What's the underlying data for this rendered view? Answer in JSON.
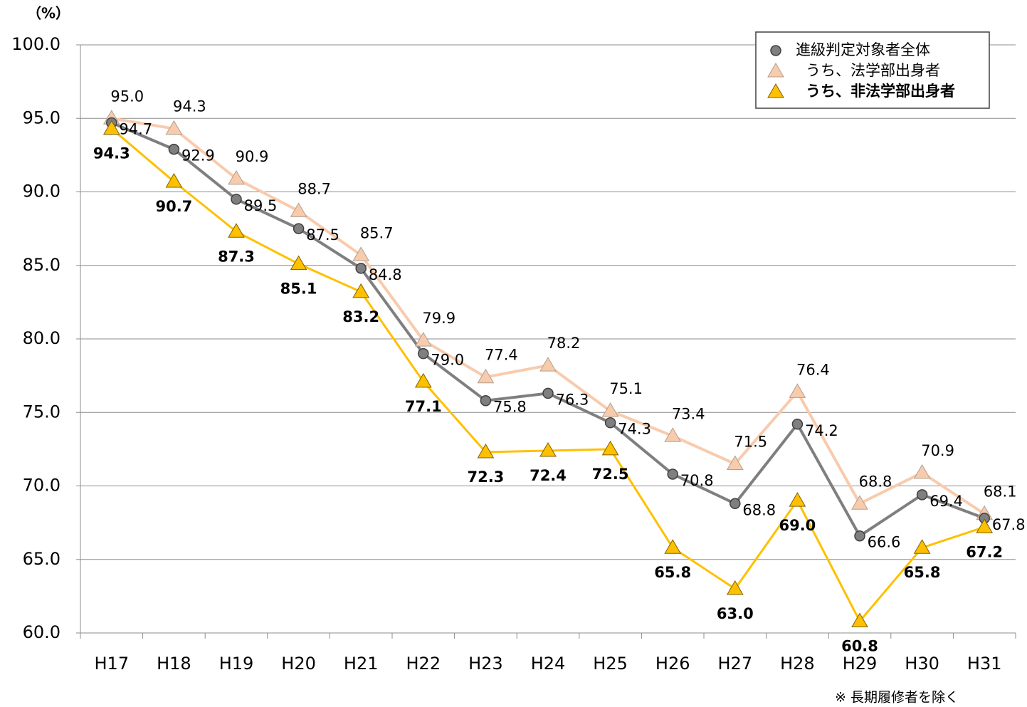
{
  "chart_data": {
    "type": "line",
    "y_axis_label": "（%）",
    "note": "※ 長期履修者を除く",
    "categories": [
      "H17",
      "H18",
      "H19",
      "H20",
      "H21",
      "H22",
      "H23",
      "H24",
      "H25",
      "H26",
      "H27",
      "H28",
      "H29",
      "H30",
      "H31"
    ],
    "series": [
      {
        "name": "進級判定対象者全体",
        "color": "#7f7f7f",
        "marker": "circle",
        "bold_labels": false,
        "values": [
          94.7,
          92.9,
          89.5,
          87.5,
          84.8,
          79.0,
          75.8,
          76.3,
          74.3,
          70.8,
          68.8,
          74.2,
          66.6,
          69.4,
          67.8
        ],
        "value_labels": [
          "94.7",
          "92.9",
          "89.5",
          "87.5",
          "84.8",
          "79.0",
          "75.8",
          "76.3",
          "74.3",
          "70.8",
          "68.8",
          "74.2",
          "66.6",
          "69.4",
          "67.8"
        ]
      },
      {
        "name": "うち、法学部出身者",
        "color": "#f8cbad",
        "marker": "triangle",
        "bold_labels": false,
        "values": [
          95.0,
          94.3,
          90.9,
          88.7,
          85.7,
          79.9,
          77.4,
          78.2,
          75.1,
          73.4,
          71.5,
          76.4,
          68.8,
          70.9,
          68.1
        ],
        "value_labels": [
          "95.0",
          "94.3",
          "90.9",
          "88.7",
          "85.7",
          "79.9",
          "77.4",
          "78.2",
          "75.1",
          "73.4",
          "71.5",
          "76.4",
          "68.8",
          "70.9",
          "68.1"
        ]
      },
      {
        "name": "うち、非法学部出身者",
        "color": "#ffc000",
        "marker": "triangle",
        "bold_labels": true,
        "values": [
          94.3,
          90.7,
          87.3,
          85.1,
          83.2,
          77.1,
          72.3,
          72.4,
          72.5,
          65.8,
          63.0,
          69.0,
          60.8,
          65.8,
          67.2
        ],
        "value_labels": [
          "94.3",
          "90.7",
          "87.3",
          "85.1",
          "83.2",
          "77.1",
          "72.3",
          "72.4",
          "72.5",
          "65.8",
          "63.0",
          "69.0",
          "60.8",
          "65.8",
          "67.2"
        ]
      }
    ],
    "ylim": [
      60,
      100
    ],
    "yticks": [
      {
        "value": 60,
        "label": "60.0"
      },
      {
        "value": 65,
        "label": "65.0"
      },
      {
        "value": 70,
        "label": "70.0"
      },
      {
        "value": 75,
        "label": "75.0"
      },
      {
        "value": 80,
        "label": "80.0"
      },
      {
        "value": 85,
        "label": "85.0"
      },
      {
        "value": 90,
        "label": "90.0"
      },
      {
        "value": 95,
        "label": "95.0"
      },
      {
        "value": 100,
        "label": "100.0"
      }
    ],
    "grid": true
  }
}
